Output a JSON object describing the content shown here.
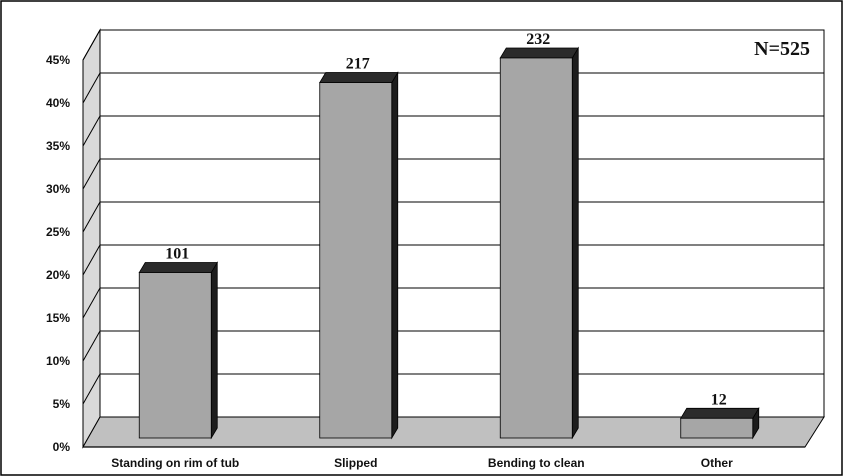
{
  "chart_data": {
    "type": "bar",
    "categories": [
      "Standing on rim of tub",
      "Slipped",
      "Bending to clean",
      "Other"
    ],
    "values": [
      0.1924,
      0.4133,
      0.4419,
      0.0229
    ],
    "data_labels": [
      "101",
      "217",
      "232",
      "12"
    ],
    "y_ticks": [
      "0%",
      "5%",
      "10%",
      "15%",
      "20%",
      "25%",
      "30%",
      "35%",
      "40%",
      "45%"
    ],
    "ylim": [
      0,
      0.45
    ],
    "annotation": "N=525",
    "grid": true,
    "style": "3d",
    "colors": {
      "bar_face": "#a6a6a6",
      "bar_side": "#1c1c1c",
      "bar_top": "#2b2b2b",
      "floor": "#c0c0c0",
      "wall": "#ffffff",
      "grid": "#000000"
    }
  }
}
